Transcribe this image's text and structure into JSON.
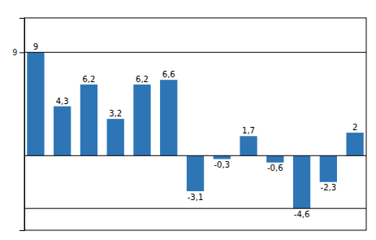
{
  "chart_data": {
    "type": "bar",
    "categories": [
      null,
      null,
      null,
      null,
      null,
      null,
      null,
      null,
      null,
      null,
      null,
      null,
      null
    ],
    "values": [
      9,
      4.3,
      6.2,
      3.2,
      6.2,
      6.6,
      -3.1,
      -0.3,
      1.7,
      -0.6,
      -4.6,
      -2.3,
      2
    ],
    "value_labels": [
      "9",
      "4,3",
      "6,2",
      "3,2",
      "6,2",
      "6,6",
      "-3,1",
      "-0,3",
      "1,7",
      "-0,6",
      "-4,6",
      "-2,3",
      "2"
    ],
    "data_labels": true,
    "color": "#2E75B6",
    "ylim": [
      -6.5,
      12.0
    ],
    "yticks": [
      9
    ],
    "hlines": [
      9,
      0,
      -4.6
    ],
    "tick_labels": "y",
    "grid": false
  }
}
